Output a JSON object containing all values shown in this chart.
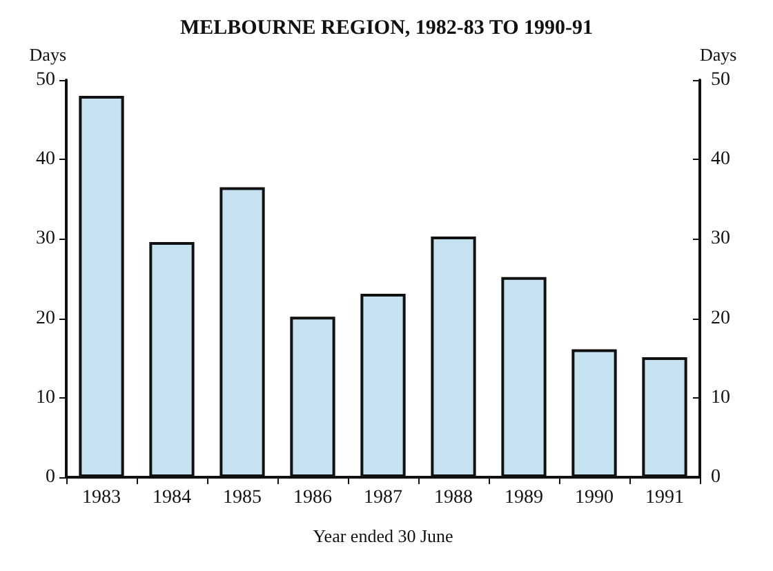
{
  "chart_data": {
    "type": "bar",
    "title": "MELBOURNE REGION, 1982-83 TO 1990-91",
    "xlabel": "Year ended 30 June",
    "ylabel": "Days",
    "y2label": "Days",
    "categories": [
      "1983",
      "1984",
      "1985",
      "1986",
      "1987",
      "1988",
      "1989",
      "1990",
      "1991"
    ],
    "values": [
      48,
      29.6,
      36.5,
      20.2,
      23.1,
      30.3,
      25.2,
      16.1,
      15.1
    ],
    "color": "#c6e2f0",
    "ylim": [
      0,
      50
    ],
    "yticks": [
      0,
      10,
      20,
      30,
      40,
      50
    ],
    "y2lim": [
      0,
      50
    ],
    "y2ticks": [
      0,
      10,
      20,
      30,
      40,
      50
    ],
    "grid": false
  }
}
